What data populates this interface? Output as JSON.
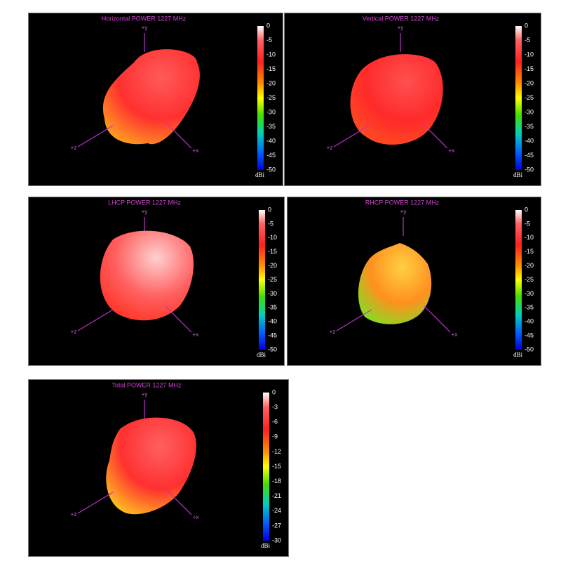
{
  "panels": [
    {
      "title": "Horizontal POWER 1227  MHz",
      "unit": "dBi",
      "ticks": [
        0,
        -5,
        -10,
        -15,
        -20,
        -25,
        -30,
        -35,
        -40,
        -45,
        -50
      ],
      "axes": {
        "y": "+y",
        "z": "+z",
        "x": "+x"
      }
    },
    {
      "title": "Vertical POWER 1227  MHz",
      "unit": "dBi",
      "ticks": [
        0,
        -5,
        -10,
        -15,
        -20,
        -25,
        -30,
        -35,
        -40,
        -45,
        -50
      ],
      "axes": {
        "y": "+y",
        "z": "+z",
        "x": "+x"
      }
    },
    {
      "title": "LHCP POWER 1227  MHz",
      "unit": "dBi",
      "ticks": [
        0,
        -5,
        -10,
        -15,
        -20,
        -25,
        -30,
        -35,
        -40,
        -45,
        -50
      ],
      "axes": {
        "y": "+y",
        "z": "+z",
        "x": "+x"
      }
    },
    {
      "title": "RHCP POWER 1227  MHz",
      "unit": "dBi",
      "ticks": [
        0,
        -5,
        -10,
        -15,
        -20,
        -25,
        -30,
        -35,
        -40,
        -45,
        -50
      ],
      "axes": {
        "y": "+y",
        "z": "+z",
        "x": "+x"
      }
    },
    {
      "title": "Total POWER 1227  MHz",
      "unit": "dBi",
      "ticks": [
        0,
        -3,
        -6,
        -9,
        -12,
        -15,
        -18,
        -21,
        -24,
        -27,
        -30
      ],
      "axes": {
        "y": "+y",
        "z": "+z",
        "x": "+x"
      }
    }
  ]
}
